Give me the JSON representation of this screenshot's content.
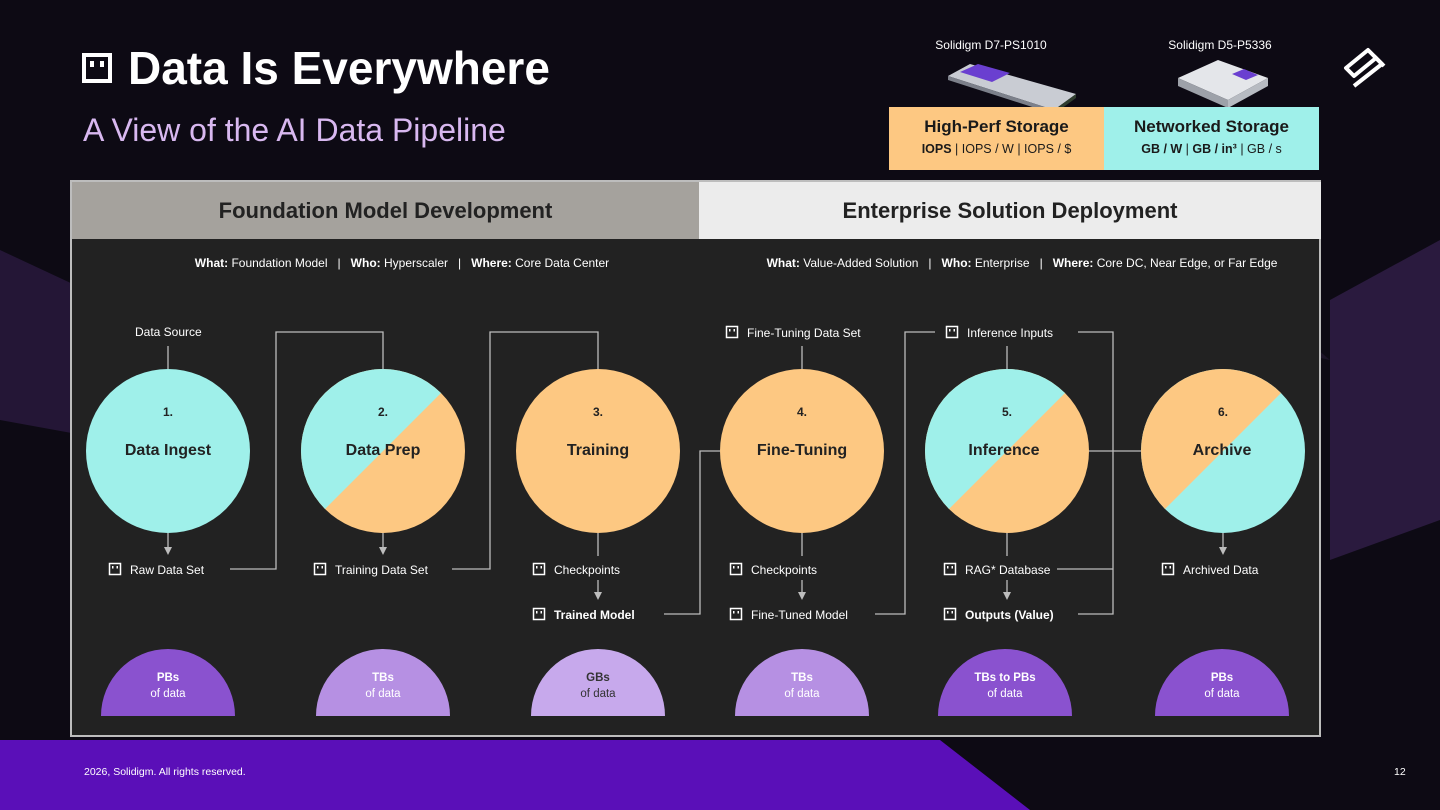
{
  "slide": {
    "title": "Data Is Everywhere",
    "subtitle": "A View of the AI Data Pipeline",
    "footer": "2026, Solidigm. All rights reserved.",
    "page_number": "12"
  },
  "products": [
    {
      "name": "Solidigm D7-PS1010"
    },
    {
      "name": "Solidigm D5-P5336"
    }
  ],
  "storage": [
    {
      "heading": "High-Perf Storage",
      "metric_bold": "IOPS",
      "metric_rest": " | IOPS / W | IOPS / $",
      "color": "#fdc882"
    },
    {
      "heading": "Networked Storage",
      "metric_bold": "GB / W",
      "sep": " | ",
      "metric_bold2": "GB / in³",
      "metric_rest": " | GB / s",
      "color": "#9ff0ea"
    }
  ],
  "sections": [
    {
      "title": "Foundation Model Development",
      "what_label": "What:",
      "what": " Foundation Model",
      "who_label": "Who:",
      "who": " Hyperscaler",
      "where_label": "Where:",
      "where": " Core Data Center",
      "sep": "   |   "
    },
    {
      "title": "Enterprise Solution Deployment",
      "what_label": "What:",
      "what": " Value-Added Solution",
      "who_label": "Who:",
      "who": " Enterprise",
      "where_label": "Where:",
      "where": " Core DC, Near Edge, or Far Edge",
      "sep": "   |   "
    }
  ],
  "stages": [
    {
      "number": "1.",
      "name": "Data Ingest",
      "fill": "teal",
      "volume": "PBs",
      "volume_suffix": "of data",
      "dome_color": "#8a52cf"
    },
    {
      "number": "2.",
      "name": "Data Prep",
      "fill": "split",
      "volume": "TBs",
      "volume_suffix": "of data",
      "dome_color": "#b690e3"
    },
    {
      "number": "3.",
      "name": "Training",
      "fill": "orange",
      "volume": "GBs",
      "volume_suffix": "of data",
      "dome_color": "#c7a9ec"
    },
    {
      "number": "4.",
      "name": "Fine-Tuning",
      "fill": "orange",
      "volume": "TBs",
      "volume_suffix": "of data",
      "dome_color": "#b690e3"
    },
    {
      "number": "5.",
      "name": "Inference",
      "fill": "split",
      "volume": "TBs to PBs",
      "volume_suffix": "of data",
      "dome_color": "#8a52cf"
    },
    {
      "number": "6.",
      "name": "Archive",
      "fill": "split",
      "volume": "PBs",
      "volume_suffix": "of data",
      "dome_color": "#8a52cf"
    }
  ],
  "flow_labels": {
    "data_source": "Data Source",
    "raw_data_set": "Raw Data Set",
    "training_data_set": "Training Data Set",
    "checkpoints_training": "Checkpoints",
    "trained_model": "Trained Model",
    "fine_tuning_data_set": "Fine-Tuning Data Set",
    "checkpoints_finetuning": "Checkpoints",
    "fine_tuned_model": "Fine-Tuned Model",
    "inference_inputs": "Inference Inputs",
    "rag_database": "RAG* Database",
    "outputs": "Outputs (Value)",
    "archived_data": "Archived Data"
  },
  "colors": {
    "teal": "#9ff0ea",
    "orange": "#fdc882",
    "purple": "#5a0fb8",
    "panel": "#222222"
  }
}
